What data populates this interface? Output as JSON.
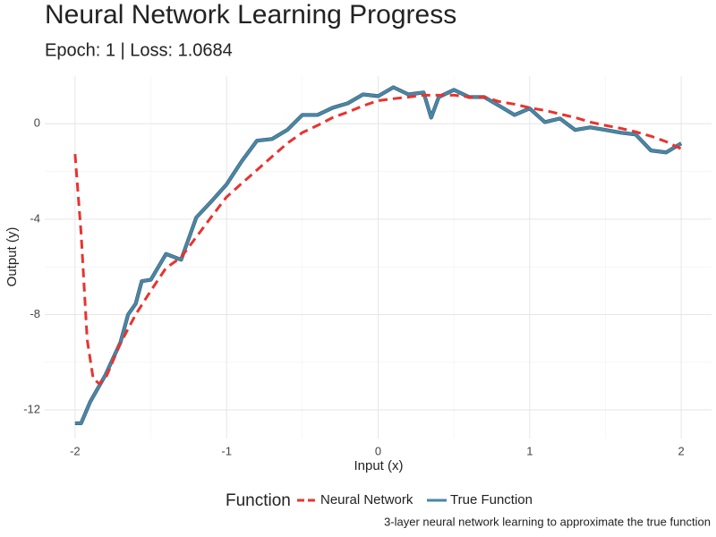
{
  "chart_data": {
    "type": "line",
    "title": "Neural Network Learning Progress",
    "subtitle": "Epoch: 1 | Loss: 1.0684",
    "x_label": "Input (x)",
    "y_label": "Output (y)",
    "caption": "3-layer neural network learning to approximate the true function",
    "legend_title": "Function",
    "legend": "bottom",
    "grid": true,
    "xlim": [
      -2.2,
      2.2
    ],
    "ylim": [
      -13.2,
      2
    ],
    "xticks": [
      -2,
      -1,
      0,
      1,
      2
    ],
    "yticks": [
      -12,
      -8,
      -4,
      0
    ],
    "x_minor_ticks": [
      -1.5,
      -0.5,
      0.5,
      1.5
    ],
    "y_minor_ticks": [
      -10,
      -6,
      -2
    ],
    "series": [
      {
        "name": "Neural Network",
        "color": "#e8332f",
        "dashed": true,
        "x": [
          -2,
          -1.96,
          -1.92,
          -1.88,
          -1.84,
          -1.8,
          -1.7,
          -1.6,
          -1.5,
          -1.4,
          -1.3,
          -1.2,
          -1.1,
          -1.0,
          -0.9,
          -0.8,
          -0.7,
          -0.6,
          -0.5,
          -0.4,
          -0.3,
          -0.2,
          -0.1,
          0,
          0.1,
          0.2,
          0.3,
          0.4,
          0.5,
          0.6,
          0.7,
          0.8,
          0.9,
          1.0,
          1.1,
          1.2,
          1.3,
          1.4,
          1.5,
          1.6,
          1.7,
          1.8,
          1.9,
          2.0
        ],
        "values": [
          -1.27,
          -4.6,
          -9.05,
          -10.7,
          -10.9,
          -10.7,
          -9.2,
          -8,
          -7,
          -6.05,
          -5.6,
          -4.75,
          -3.9,
          -3.07,
          -2.5,
          -1.94,
          -1.38,
          -0.82,
          -0.37,
          -0.07,
          0.26,
          0.49,
          0.75,
          0.97,
          1.05,
          1.12,
          1.2,
          1.2,
          1.2,
          1.12,
          1.12,
          0.93,
          0.82,
          0.67,
          0.56,
          0.41,
          0.26,
          0.07,
          -0.07,
          -0.19,
          -0.34,
          -0.52,
          -0.75,
          -1.05
        ]
      },
      {
        "name": "True Function",
        "color": "#4a86a6",
        "dashed": false,
        "x": [
          -2,
          -1.96,
          -1.9,
          -1.8,
          -1.7,
          -1.65,
          -1.6,
          -1.56,
          -1.5,
          -1.4,
          -1.3,
          -1.2,
          -1.1,
          -1.0,
          -0.9,
          -0.8,
          -0.7,
          -0.6,
          -0.5,
          -0.4,
          -0.3,
          -0.2,
          -0.1,
          0,
          0.1,
          0.2,
          0.3,
          0.35,
          0.4,
          0.5,
          0.6,
          0.7,
          0.8,
          0.9,
          1.0,
          1.1,
          1.2,
          1.3,
          1.4,
          1.5,
          1.6,
          1.7,
          1.8,
          1.9,
          2.0
        ],
        "values": [
          -12.56,
          -12.56,
          -11.66,
          -10.54,
          -9.16,
          -8,
          -7.55,
          -6.6,
          -6.54,
          -5.46,
          -5.7,
          -3.93,
          -3.25,
          -2.54,
          -1.57,
          -0.71,
          -0.64,
          -0.26,
          0.37,
          0.37,
          0.67,
          0.86,
          1.23,
          1.16,
          1.53,
          1.23,
          1.31,
          0.26,
          1.12,
          1.42,
          1.12,
          1.12,
          0.75,
          0.37,
          0.64,
          0.07,
          0.22,
          -0.26,
          -0.15,
          -0.26,
          -0.37,
          -0.45,
          -1.12,
          -1.2,
          -0.82
        ]
      }
    ]
  }
}
